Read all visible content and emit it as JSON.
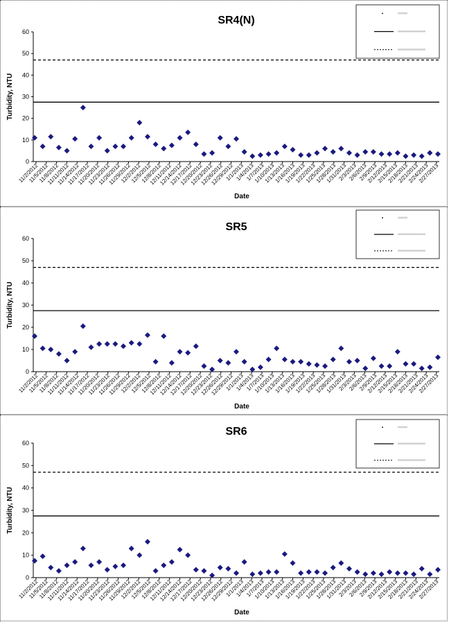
{
  "chart_data": [
    {
      "type": "scatter",
      "title": "SR4(N)",
      "xlabel": "Date",
      "ylabel": "Turbidity, NTU",
      "ylim": [
        0,
        60
      ],
      "yticks": [
        0,
        10,
        20,
        30,
        40,
        50,
        60
      ],
      "grid": false,
      "legend_position": "top-right",
      "x_tick_labels": [
        "11/2/2012",
        "11/5/2012",
        "11/8/2012",
        "11/11/2012",
        "11/14/2012",
        "11/17/2012",
        "11/20/2012",
        "11/23/2012",
        "11/26/2012",
        "11/29/2012",
        "12/2/2012",
        "12/5/2012",
        "12/8/2012",
        "12/11/2012",
        "12/14/2012",
        "12/17/2012",
        "12/20/2012",
        "12/23/2012",
        "12/26/2012",
        "12/29/2012",
        "1/1/2013",
        "1/4/2013",
        "1/7/2013",
        "1/10/2013",
        "1/13/2013",
        "1/16/2013",
        "1/19/2013",
        "1/22/2013",
        "1/25/2013",
        "1/28/2013",
        "1/31/2013",
        "2/3/2013",
        "2/6/2013",
        "2/9/2013",
        "2/12/2013",
        "2/15/2013",
        "2/18/2013",
        "2/21/2013",
        "2/24/2013",
        "2/27/2013"
      ],
      "series": [
        {
          "values": [
            11,
            7,
            11.5,
            6.5,
            5,
            10.5,
            25,
            7,
            11,
            5,
            7,
            7,
            11,
            18,
            11.5,
            8,
            6,
            7.5,
            11,
            13.5,
            8,
            3.5,
            4,
            11,
            7,
            10.5,
            4.5,
            2.5,
            3,
            3.5,
            4,
            7,
            5.5,
            3,
            3,
            4,
            6,
            4.5,
            6,
            4,
            3,
            4.5,
            4.5,
            3.5,
            3.5,
            4,
            2.5,
            3,
            2.5,
            4,
            3.5
          ]
        }
      ],
      "reference_lines": [
        {
          "value": 27.5,
          "style": "solid"
        },
        {
          "value": 47,
          "style": "dashed"
        }
      ]
    },
    {
      "type": "scatter",
      "title": "SR5",
      "xlabel": "Date",
      "ylabel": "Turbidity, NTU",
      "ylim": [
        0,
        60
      ],
      "yticks": [
        0,
        10,
        20,
        30,
        40,
        50,
        60
      ],
      "grid": false,
      "legend_position": "top-right",
      "x_tick_labels": [
        "11/2/2012",
        "11/5/2012",
        "11/8/2012",
        "11/11/2012",
        "11/14/2012",
        "11/17/2012",
        "11/20/2012",
        "11/23/2012",
        "11/26/2012",
        "11/29/2012",
        "12/2/2012",
        "12/5/2012",
        "12/8/2012",
        "12/11/2012",
        "12/14/2012",
        "12/17/2012",
        "12/20/2012",
        "12/23/2012",
        "12/26/2012",
        "12/29/2012",
        "1/1/2013",
        "1/4/2013",
        "1/7/2013",
        "1/10/2013",
        "1/13/2013",
        "1/16/2013",
        "1/19/2013",
        "1/22/2013",
        "1/25/2013",
        "1/28/2013",
        "1/31/2013",
        "2/3/2013",
        "2/6/2013",
        "2/9/2013",
        "2/12/2013",
        "2/15/2013",
        "2/18/2013",
        "2/21/2013",
        "2/24/2013",
        "2/27/2013"
      ],
      "series": [
        {
          "values": [
            16,
            10.5,
            10,
            8,
            5,
            9,
            20.5,
            11,
            12.5,
            12.5,
            12.5,
            11.5,
            13,
            12.5,
            16.5,
            4.5,
            16,
            4,
            9,
            8.5,
            11.5,
            2.5,
            1,
            5,
            4,
            9,
            4.5,
            1,
            2,
            5.5,
            10.5,
            5.5,
            4.5,
            4.5,
            3.5,
            3,
            2.5,
            5.5,
            10.5,
            4.5,
            5,
            1.5,
            6,
            2.5,
            2.5,
            9,
            3.5,
            3.5,
            1.5,
            2,
            6.5
          ]
        }
      ],
      "reference_lines": [
        {
          "value": 27.5,
          "style": "solid"
        },
        {
          "value": 47,
          "style": "dashed"
        }
      ]
    },
    {
      "type": "scatter",
      "title": "SR6",
      "xlabel": "Date",
      "ylabel": "Turbidity, NTU",
      "ylim": [
        0,
        60
      ],
      "yticks": [
        0,
        10,
        20,
        30,
        40,
        50,
        60
      ],
      "grid": false,
      "legend_position": "top-right",
      "x_tick_labels": [
        "11/2/2012",
        "11/5/2012",
        "11/8/2012",
        "11/11/2012",
        "11/14/2012",
        "11/17/2012",
        "11/20/2012",
        "11/23/2012",
        "11/26/2012",
        "11/29/2012",
        "12/2/2012",
        "12/5/2012",
        "12/8/2012",
        "12/11/2012",
        "12/14/2012",
        "12/17/2012",
        "12/20/2012",
        "12/23/2012",
        "12/26/2012",
        "12/29/2012",
        "1/1/2013",
        "1/4/2013",
        "1/7/2013",
        "1/10/2013",
        "1/13/2013",
        "1/16/2013",
        "1/19/2013",
        "1/22/2013",
        "1/25/2013",
        "1/28/2013",
        "1/31/2013",
        "2/3/2013",
        "2/6/2013",
        "2/9/2013",
        "2/12/2013",
        "2/15/2013",
        "2/18/2013",
        "2/21/2013",
        "2/24/2013",
        "2/27/2013"
      ],
      "series": [
        {
          "values": [
            7.5,
            9.5,
            4.5,
            3,
            5.5,
            7,
            13,
            5.5,
            7,
            3.5,
            5,
            5.5,
            13,
            10,
            16,
            3,
            5.5,
            7,
            12.5,
            10,
            3.5,
            3,
            1,
            4.5,
            4,
            2,
            7,
            1.5,
            2,
            2.5,
            2.5,
            10.5,
            6.5,
            2,
            2.5,
            2.5,
            2,
            4.5,
            6.5,
            4,
            2.5,
            1.5,
            2,
            1.5,
            2.5,
            2,
            2,
            1.5,
            4,
            1.5,
            3.5
          ]
        }
      ],
      "reference_lines": [
        {
          "value": 27.5,
          "style": "solid"
        },
        {
          "value": 47,
          "style": "dashed"
        }
      ]
    }
  ],
  "colors": {
    "marker": "#1a1a80",
    "line": "#000000"
  }
}
